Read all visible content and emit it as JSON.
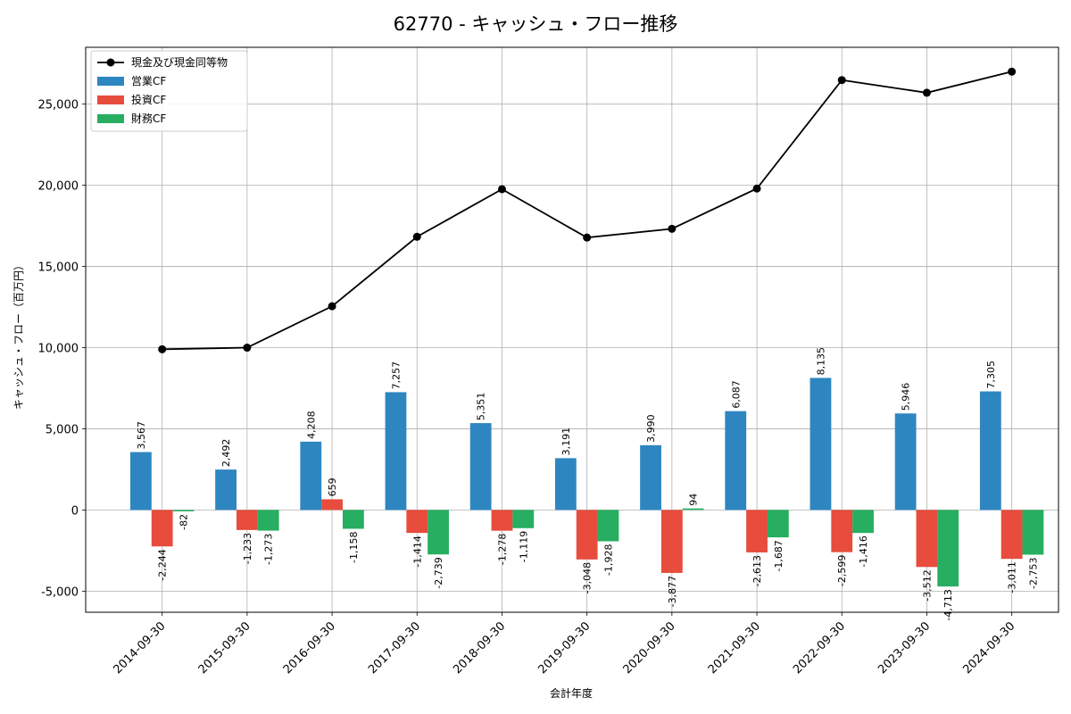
{
  "chart_data": {
    "type": "bar",
    "title": "62770 - キャッシュ・フロー推移",
    "xlabel": "会計年度",
    "ylabel": "キャッシュ・フロー（百万円）",
    "categories": [
      "2014-09-30",
      "2015-09-30",
      "2016-09-30",
      "2017-09-30",
      "2018-09-30",
      "2019-09-30",
      "2020-09-30",
      "2021-09-30",
      "2022-09-30",
      "2023-09-30",
      "2024-09-30"
    ],
    "ylim": [
      -6300,
      28500
    ],
    "yticks": [
      -5000,
      0,
      5000,
      10000,
      15000,
      20000,
      25000
    ],
    "ytick_labels": [
      "-5,000",
      "0",
      "5,000",
      "10,000",
      "15,000",
      "20,000",
      "25,000"
    ],
    "grid": true,
    "legend_position": "top-left",
    "series": [
      {
        "name": "営業CF",
        "kind": "bar",
        "color": "#2e86c1",
        "values": [
          3567,
          2492,
          4208,
          7257,
          5351,
          3191,
          3990,
          6087,
          8135,
          5946,
          7305
        ],
        "labels": [
          "3,567",
          "2,492",
          "4,208",
          "7,257",
          "5,351",
          "3,191",
          "3,990",
          "6,087",
          "8,135",
          "5,946",
          "7,305"
        ]
      },
      {
        "name": "投資CF",
        "kind": "bar",
        "color": "#e74c3c",
        "values": [
          -2244,
          -1233,
          659,
          -1414,
          -1278,
          -3048,
          -3877,
          -2613,
          -2599,
          -3512,
          -3011
        ],
        "labels": [
          "-2,244",
          "-1,233",
          "659",
          "-1,414",
          "-1,278",
          "-3,048",
          "-3,877",
          "-2,613",
          "-2,599",
          "-3,512",
          "-3,011"
        ]
      },
      {
        "name": "財務CF",
        "kind": "bar",
        "color": "#27ae60",
        "values": [
          -82,
          -1273,
          -1158,
          -2739,
          -1119,
          -1928,
          94,
          -1687,
          -1416,
          -4713,
          -2753
        ],
        "labels": [
          "-82",
          "-1,273",
          "-1,158",
          "-2,739",
          "-1,119",
          "-1,928",
          "94",
          "-1,687",
          "-1,416",
          "-4,713",
          "-2,753"
        ]
      },
      {
        "name": "現金及び現金同等物",
        "kind": "line",
        "color": "#000000",
        "values": [
          9900,
          10000,
          12550,
          16830,
          19760,
          16780,
          17320,
          19800,
          26480,
          25700,
          27000
        ]
      }
    ]
  }
}
